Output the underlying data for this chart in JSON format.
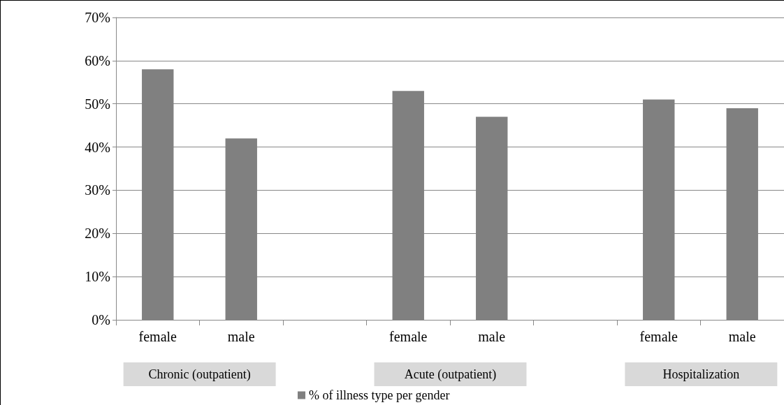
{
  "chart_data": {
    "type": "bar",
    "categories": [
      "female",
      "male",
      null,
      "female",
      "male",
      null,
      "female",
      "male"
    ],
    "series": [
      {
        "name": "% of illness type per gender",
        "color": "#808080",
        "values": [
          58,
          42,
          null,
          53,
          47,
          null,
          51,
          49
        ]
      }
    ],
    "ylim": [
      0,
      70
    ],
    "yticks": [
      {
        "value": 0,
        "label": "0%"
      },
      {
        "value": 10,
        "label": "10%"
      },
      {
        "value": 20,
        "label": "20%"
      },
      {
        "value": 30,
        "label": "30%"
      },
      {
        "value": 40,
        "label": "40%"
      },
      {
        "value": 50,
        "label": "50%"
      },
      {
        "value": 60,
        "label": "60%"
      },
      {
        "value": 70,
        "label": "70%"
      }
    ],
    "annotations": [
      "Chronic (outpatient)",
      "Acute (outpatient)",
      "Hospitalization"
    ],
    "grid": "y",
    "legend": "bottom"
  }
}
